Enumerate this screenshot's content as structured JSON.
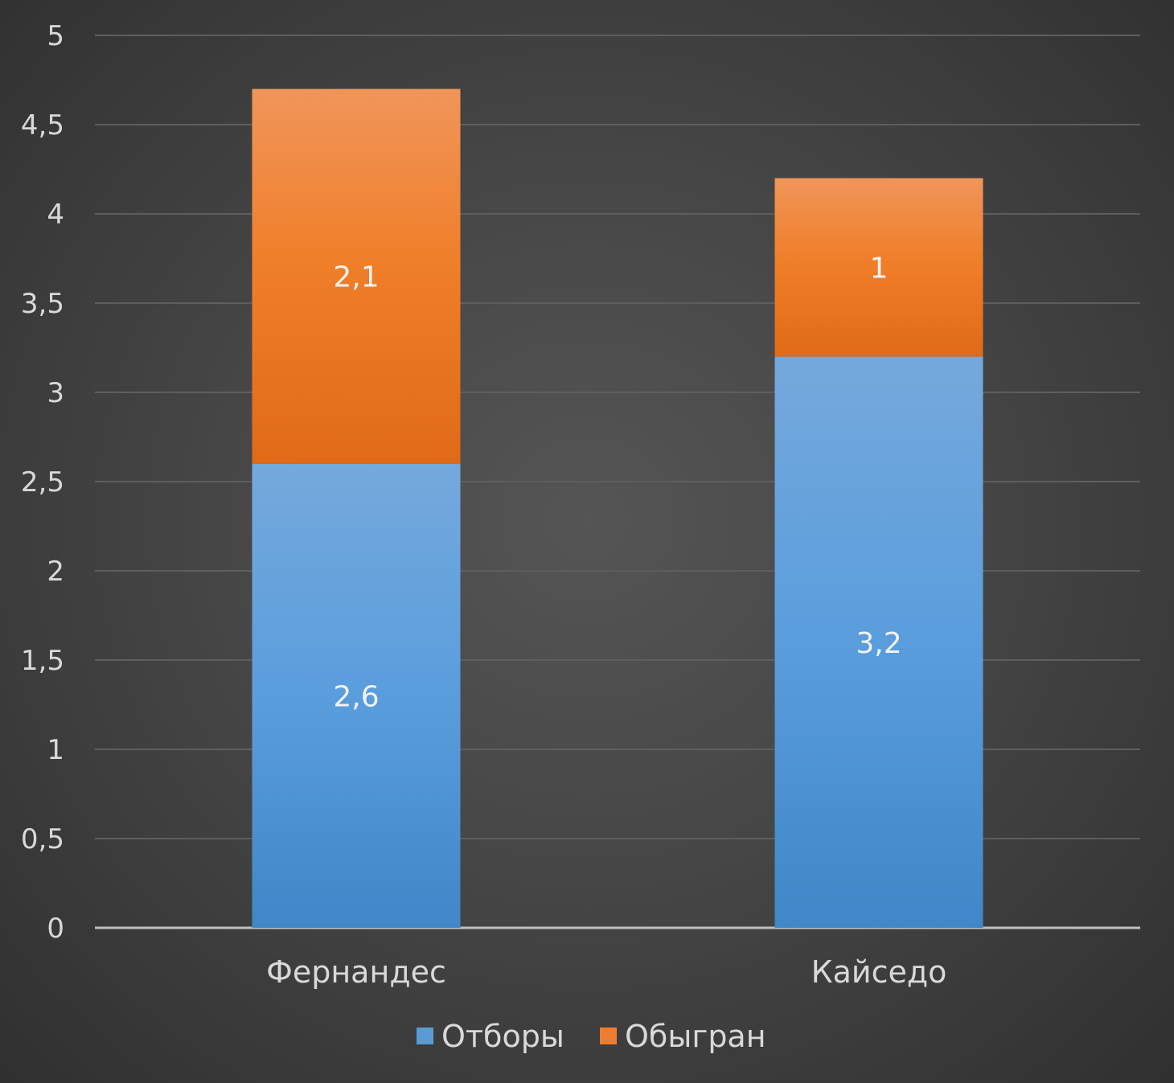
{
  "chart_data": {
    "type": "bar",
    "stacked": true,
    "categories": [
      "Фернандес",
      "Кайседо"
    ],
    "series": [
      {
        "name": "Отборы",
        "values": [
          2.6,
          3.2
        ],
        "value_labels": [
          "2,6",
          "3,2"
        ],
        "color": "#5b9bd5"
      },
      {
        "name": "Обыгран",
        "values": [
          2.1,
          1
        ],
        "value_labels": [
          "2,1",
          "1"
        ],
        "color": "#ed7d31"
      }
    ],
    "ylim": [
      0,
      5
    ],
    "yticks": [
      0,
      0.5,
      1,
      1.5,
      2,
      2.5,
      3,
      3.5,
      4,
      4.5,
      5
    ],
    "ytick_labels": [
      "0",
      "0,5",
      "1",
      "1,5",
      "2",
      "2,5",
      "3",
      "3,5",
      "4",
      "4,5",
      "5"
    ],
    "grid": true,
    "legend_position": "bottom",
    "title": "",
    "xlabel": "",
    "ylabel": ""
  }
}
